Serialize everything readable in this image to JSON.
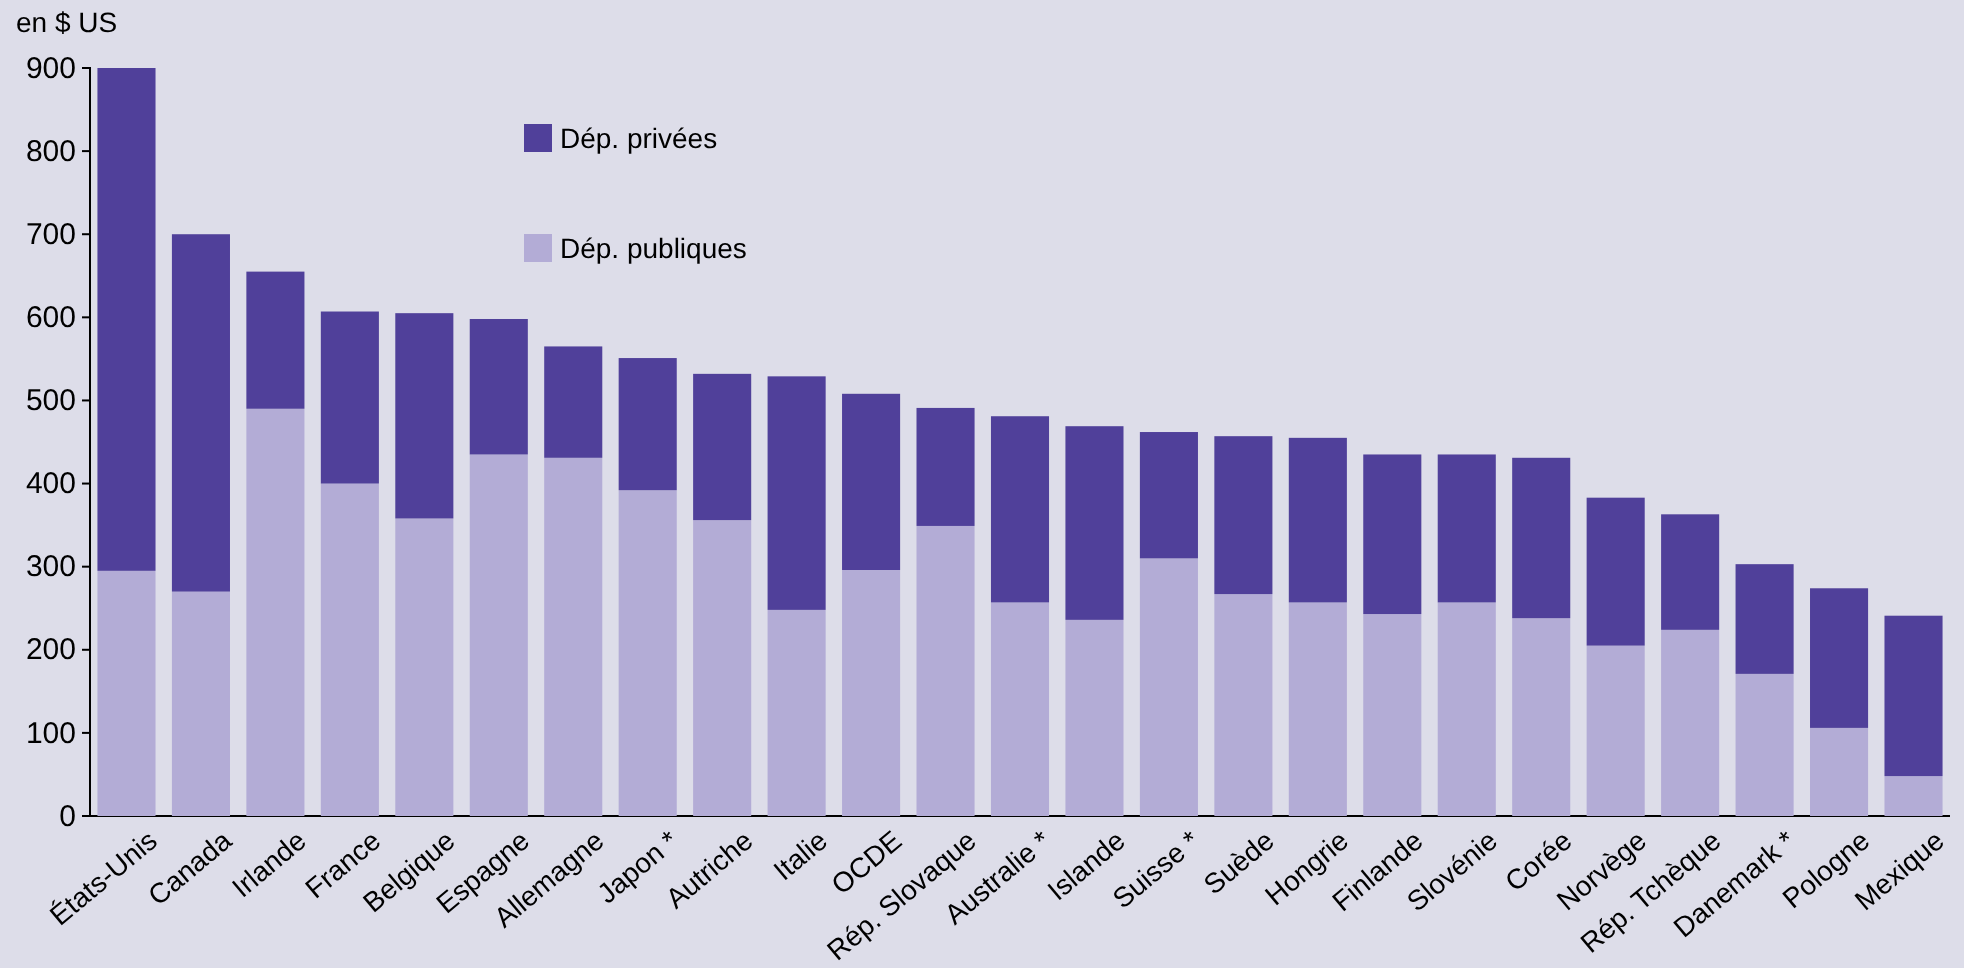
{
  "chart_data": {
    "type": "bar",
    "stacked": true,
    "ylabel": "en $ US",
    "categories": [
      "États-Unis",
      "Canada",
      "Irlande",
      "France",
      "Belgique",
      "Espagne",
      "Allemagne",
      "Japon *",
      "Autriche",
      "Italie",
      "OCDE",
      "Rép. Slovaque",
      "Australie *",
      "Islande",
      "Suisse *",
      "Suède",
      "Hongrie",
      "Finlande",
      "Slovénie",
      "Corée",
      "Norvège",
      "Rép. Tchèque",
      "Danemark *",
      "Pologne",
      "Mexique"
    ],
    "series": [
      {
        "name": "Dép. publiques",
        "color": "#b3acd6",
        "values": [
          295,
          270,
          490,
          400,
          358,
          435,
          431,
          392,
          356,
          248,
          296,
          349,
          257,
          236,
          310,
          267,
          257,
          243,
          257,
          238,
          205,
          224,
          171,
          106,
          48
        ]
      },
      {
        "name": "Dép. privées",
        "color": "#50409a",
        "values": [
          605,
          430,
          165,
          207,
          247,
          163,
          134,
          159,
          176,
          281,
          212,
          142,
          224,
          233,
          152,
          190,
          198,
          192,
          178,
          193,
          178,
          139,
          132,
          168,
          193
        ]
      }
    ],
    "ylim": [
      0,
      900
    ],
    "yticks": [
      0,
      100,
      200,
      300,
      400,
      500,
      600,
      700,
      800,
      900
    ],
    "grid": false,
    "legend": "top left"
  }
}
